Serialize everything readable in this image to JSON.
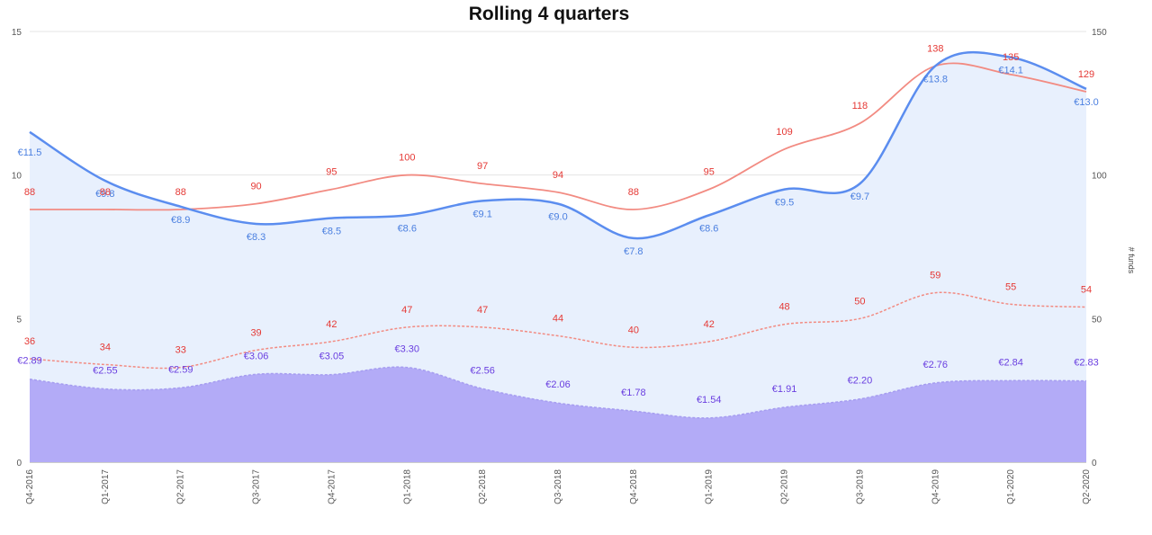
{
  "chart_data": {
    "type": "line",
    "title": "Rolling 4 quarters",
    "categories": [
      "Q4-2016",
      "Q1-2017",
      "Q2-2017",
      "Q3-2017",
      "Q4-2017",
      "Q1-2018",
      "Q2-2018",
      "Q3-2018",
      "Q4-2018",
      "Q1-2019",
      "Q2-2019",
      "Q3-2019",
      "Q4-2019",
      "Q1-2020",
      "Q2-2020"
    ],
    "y_left": {
      "min": 0,
      "max": 15,
      "ticks": [
        0,
        5,
        10,
        15
      ]
    },
    "y_right": {
      "label": "# funds",
      "min": 0,
      "max": 150,
      "ticks": [
        0,
        50,
        100,
        150
      ]
    },
    "grid": true,
    "series": [
      {
        "kind": "area-line",
        "axis": "left",
        "style": "blue-solid",
        "values": [
          11.5,
          9.8,
          8.9,
          8.3,
          8.5,
          8.6,
          9.1,
          9.0,
          7.8,
          8.6,
          9.5,
          9.7,
          13.8,
          14.1,
          13.0
        ],
        "labels": [
          "€11.5",
          "€9.8",
          "€8.9",
          "€8.3",
          "€8.5",
          "€8.6",
          "€9.1",
          "€9.0",
          "€7.8",
          "€8.6",
          "€9.5",
          "€9.7",
          "€13.8",
          "€14.1",
          "€13.0"
        ]
      },
      {
        "kind": "line",
        "axis": "right",
        "style": "red-solid",
        "values": [
          88,
          88,
          88,
          90,
          95,
          100,
          97,
          94,
          88,
          95,
          109,
          118,
          138,
          135,
          129
        ],
        "labels": [
          "88",
          "88",
          "88",
          "90",
          "95",
          "100",
          "97",
          "94",
          "88",
          "95",
          "109",
          "118",
          "138",
          "135",
          "129"
        ]
      },
      {
        "kind": "line",
        "axis": "right",
        "style": "red-dashed",
        "values": [
          36,
          34,
          33,
          39,
          42,
          47,
          47,
          44,
          40,
          42,
          48,
          50,
          59,
          55,
          54
        ],
        "labels": [
          "36",
          "34",
          "33",
          "39",
          "42",
          "47",
          "47",
          "44",
          "40",
          "42",
          "48",
          "50",
          "59",
          "55",
          "54"
        ]
      },
      {
        "kind": "area",
        "axis": "left",
        "style": "purple-fill",
        "values": [
          2.89,
          2.55,
          2.59,
          3.06,
          3.05,
          3.3,
          2.56,
          2.06,
          1.78,
          1.54,
          1.91,
          2.2,
          2.76,
          2.84,
          2.83
        ],
        "labels": [
          "€2.89",
          "€2.55",
          "€2.59",
          "€3.06",
          "€3.05",
          "€3.30",
          "€2.56",
          "€2.06",
          "€1.78",
          "€1.54",
          "€1.91",
          "€2.20",
          "€2.76",
          "€2.84",
          "€2.83"
        ]
      }
    ],
    "colors": {
      "blue_line": "#5B8DEF",
      "blue_fill": "#E8F0FD",
      "blue_label": "#4A7FE0",
      "red_line": "#F28B82",
      "red_label": "#E53935",
      "purple_fill": "#B3ABF7",
      "purple_stroke": "#A69DF0",
      "purple_label": "#6A3FE0",
      "grid": "#E4E4E4"
    }
  }
}
